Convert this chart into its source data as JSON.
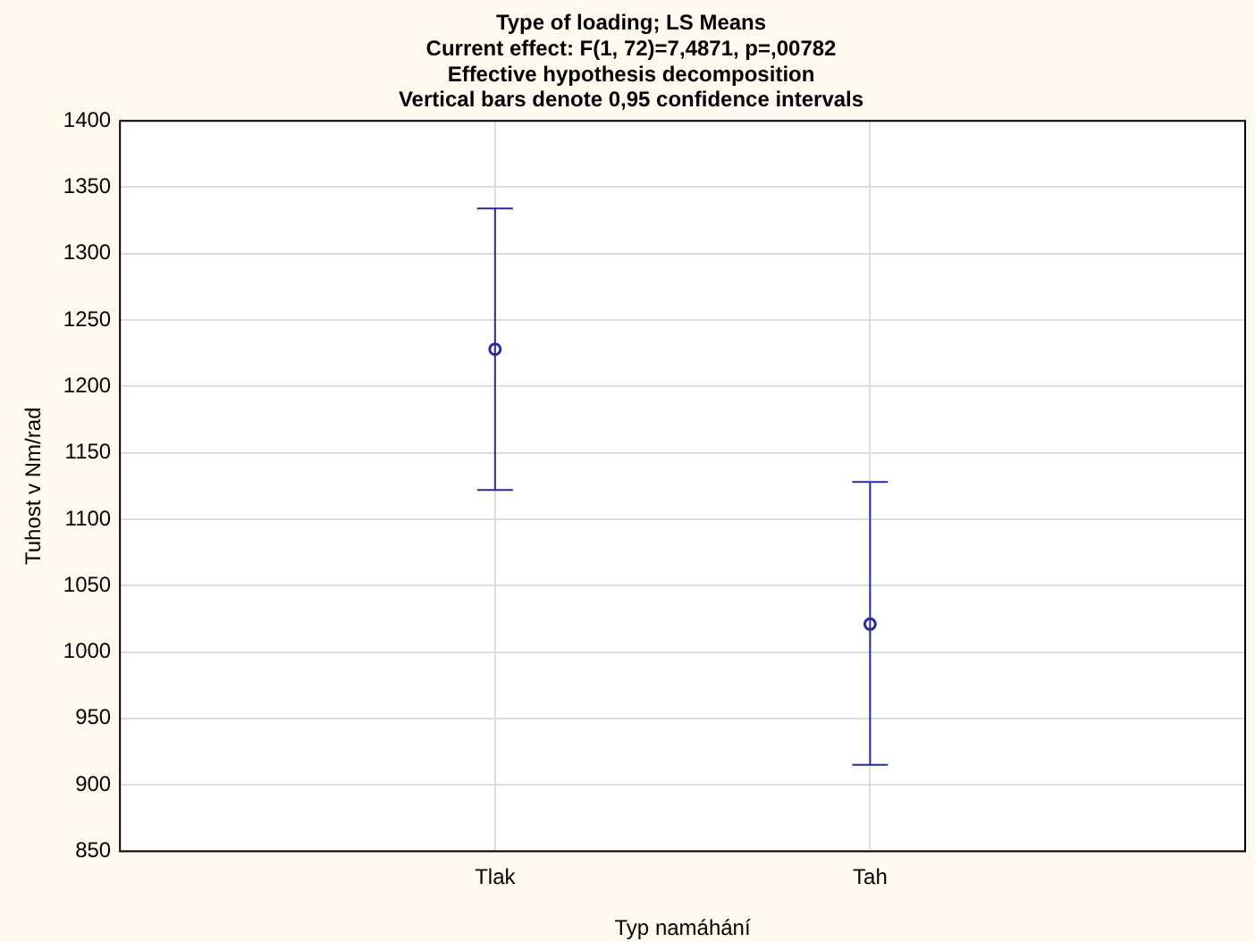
{
  "chart_data": {
    "type": "scatter",
    "title": "Type of loading; LS Means",
    "subtitle": "Current effect: F(1, 72)=7,4871, p=,00782",
    "annotations": [
      "Effective hypothesis decomposition",
      "Vertical bars denote 0,95 confidence intervals"
    ],
    "xlabel": "Typ namáhání",
    "ylabel": "Tuhost v Nm/rad",
    "categories": [
      "Tlak",
      "Tah"
    ],
    "values": [
      1228,
      1021
    ],
    "errors": [
      [
        1122,
        1334
      ],
      [
        915,
        1128
      ]
    ],
    "color": "#2b2b96",
    "ylim": [
      850,
      1400
    ],
    "yticks": [
      850,
      900,
      950,
      1000,
      1050,
      1100,
      1150,
      1200,
      1250,
      1300,
      1350,
      1400
    ],
    "grid": true,
    "marker": "circle"
  }
}
